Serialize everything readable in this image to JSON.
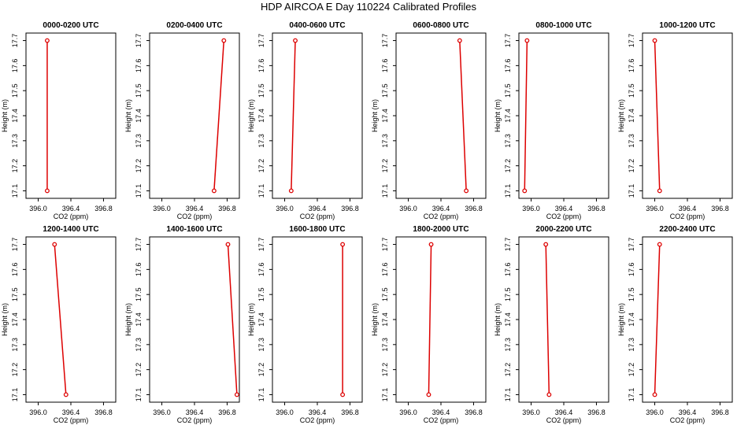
{
  "title": "HDP AIRCOA E  Day 110224  Calibrated Profiles",
  "colors": {
    "line": "#dd0000",
    "axis": "#000000",
    "background": "#ffffff"
  },
  "chart_data": [
    {
      "type": "line",
      "title": "0000-0200 UTC",
      "xlabel": "CO2 (ppm)",
      "ylabel": "Height (m)",
      "xlim": [
        395.85,
        396.95
      ],
      "ylim": [
        17.07,
        17.73
      ],
      "xticks": [
        "396.0",
        "396.4",
        "396.8"
      ],
      "yticks": [
        "17.1",
        "17.2",
        "17.3",
        "17.4",
        "17.5",
        "17.6",
        "17.7"
      ],
      "x": [
        396.11,
        396.11
      ],
      "y": [
        17.1,
        17.7
      ]
    },
    {
      "type": "line",
      "title": "0200-0400 UTC",
      "xlabel": "CO2 (ppm)",
      "ylabel": "Height (m)",
      "xlim": [
        395.85,
        396.95
      ],
      "ylim": [
        17.07,
        17.73
      ],
      "xticks": [
        "396.0",
        "396.4",
        "396.8"
      ],
      "yticks": [
        "17.1",
        "17.2",
        "17.3",
        "17.4",
        "17.5",
        "17.6",
        "17.7"
      ],
      "x": [
        396.64,
        396.76
      ],
      "y": [
        17.1,
        17.7
      ]
    },
    {
      "type": "line",
      "title": "0400-0600 UTC",
      "xlabel": "CO2 (ppm)",
      "ylabel": "Height (m)",
      "xlim": [
        395.85,
        396.95
      ],
      "ylim": [
        17.07,
        17.73
      ],
      "xticks": [
        "396.0",
        "396.4",
        "396.8"
      ],
      "yticks": [
        "17.1",
        "17.2",
        "17.3",
        "17.4",
        "17.5",
        "17.6",
        "17.7"
      ],
      "x": [
        396.08,
        396.13
      ],
      "y": [
        17.1,
        17.7
      ]
    },
    {
      "type": "line",
      "title": "0600-0800 UTC",
      "xlabel": "CO2 (ppm)",
      "ylabel": "Height (m)",
      "xlim": [
        395.85,
        396.95
      ],
      "ylim": [
        17.07,
        17.73
      ],
      "xticks": [
        "396.0",
        "396.4",
        "396.8"
      ],
      "yticks": [
        "17.1",
        "17.2",
        "17.3",
        "17.4",
        "17.5",
        "17.6",
        "17.7"
      ],
      "x": [
        396.71,
        396.63
      ],
      "y": [
        17.1,
        17.7
      ]
    },
    {
      "type": "line",
      "title": "0800-1000 UTC",
      "xlabel": "CO2 (ppm)",
      "ylabel": "Height (m)",
      "xlim": [
        395.85,
        396.95
      ],
      "ylim": [
        17.07,
        17.73
      ],
      "xticks": [
        "396.0",
        "396.4",
        "396.8"
      ],
      "yticks": [
        "17.1",
        "17.2",
        "17.3",
        "17.4",
        "17.5",
        "17.6",
        "17.7"
      ],
      "x": [
        395.92,
        395.95
      ],
      "y": [
        17.1,
        17.7
      ]
    },
    {
      "type": "line",
      "title": "1000-1200 UTC",
      "xlabel": "CO2 (ppm)",
      "ylabel": "Height (m)",
      "xlim": [
        395.85,
        396.95
      ],
      "ylim": [
        17.07,
        17.73
      ],
      "xticks": [
        "396.0",
        "396.4",
        "396.8"
      ],
      "yticks": [
        "17.1",
        "17.2",
        "17.3",
        "17.4",
        "17.5",
        "17.6",
        "17.7"
      ],
      "x": [
        396.06,
        396.0
      ],
      "y": [
        17.1,
        17.7
      ]
    },
    {
      "type": "line",
      "title": "1200-1400 UTC",
      "xlabel": "CO2 (ppm)",
      "ylabel": "Height (m)",
      "xlim": [
        395.85,
        396.95
      ],
      "ylim": [
        17.07,
        17.73
      ],
      "xticks": [
        "396.0",
        "396.4",
        "396.8"
      ],
      "yticks": [
        "17.1",
        "17.2",
        "17.3",
        "17.4",
        "17.5",
        "17.6",
        "17.7"
      ],
      "x": [
        396.34,
        396.2
      ],
      "y": [
        17.1,
        17.7
      ]
    },
    {
      "type": "line",
      "title": "1400-1600 UTC",
      "xlabel": "CO2 (ppm)",
      "ylabel": "Height (m)",
      "xlim": [
        395.85,
        396.95
      ],
      "ylim": [
        17.07,
        17.73
      ],
      "xticks": [
        "396.0",
        "396.4",
        "396.8"
      ],
      "yticks": [
        "17.1",
        "17.2",
        "17.3",
        "17.4",
        "17.5",
        "17.6",
        "17.7"
      ],
      "x": [
        396.92,
        396.81
      ],
      "y": [
        17.1,
        17.7
      ]
    },
    {
      "type": "line",
      "title": "1600-1800 UTC",
      "xlabel": "CO2 (ppm)",
      "ylabel": "Height (m)",
      "xlim": [
        395.85,
        396.95
      ],
      "ylim": [
        17.07,
        17.73
      ],
      "xticks": [
        "396.0",
        "396.4",
        "396.8"
      ],
      "yticks": [
        "17.1",
        "17.2",
        "17.3",
        "17.4",
        "17.5",
        "17.6",
        "17.7"
      ],
      "x": [
        396.71,
        396.71
      ],
      "y": [
        17.1,
        17.7
      ]
    },
    {
      "type": "line",
      "title": "1800-2000 UTC",
      "xlabel": "CO2 (ppm)",
      "ylabel": "Height (m)",
      "xlim": [
        395.85,
        396.95
      ],
      "ylim": [
        17.07,
        17.73
      ],
      "xticks": [
        "396.0",
        "396.4",
        "396.8"
      ],
      "yticks": [
        "17.1",
        "17.2",
        "17.3",
        "17.4",
        "17.5",
        "17.6",
        "17.7"
      ],
      "x": [
        396.25,
        396.28
      ],
      "y": [
        17.1,
        17.7
      ]
    },
    {
      "type": "line",
      "title": "2000-2200 UTC",
      "xlabel": "CO2 (ppm)",
      "ylabel": "Height (m)",
      "xlim": [
        395.85,
        396.95
      ],
      "ylim": [
        17.07,
        17.73
      ],
      "xticks": [
        "396.0",
        "396.4",
        "396.8"
      ],
      "yticks": [
        "17.1",
        "17.2",
        "17.3",
        "17.4",
        "17.5",
        "17.6",
        "17.7"
      ],
      "x": [
        396.22,
        396.18
      ],
      "y": [
        17.1,
        17.7
      ]
    },
    {
      "type": "line",
      "title": "2200-2400 UTC",
      "xlabel": "CO2 (ppm)",
      "ylabel": "Height (m)",
      "xlim": [
        395.85,
        396.95
      ],
      "ylim": [
        17.07,
        17.73
      ],
      "xticks": [
        "396.0",
        "396.4",
        "396.8"
      ],
      "yticks": [
        "17.1",
        "17.2",
        "17.3",
        "17.4",
        "17.5",
        "17.6",
        "17.7"
      ],
      "x": [
        396.0,
        396.06
      ],
      "y": [
        17.1,
        17.7
      ]
    }
  ]
}
